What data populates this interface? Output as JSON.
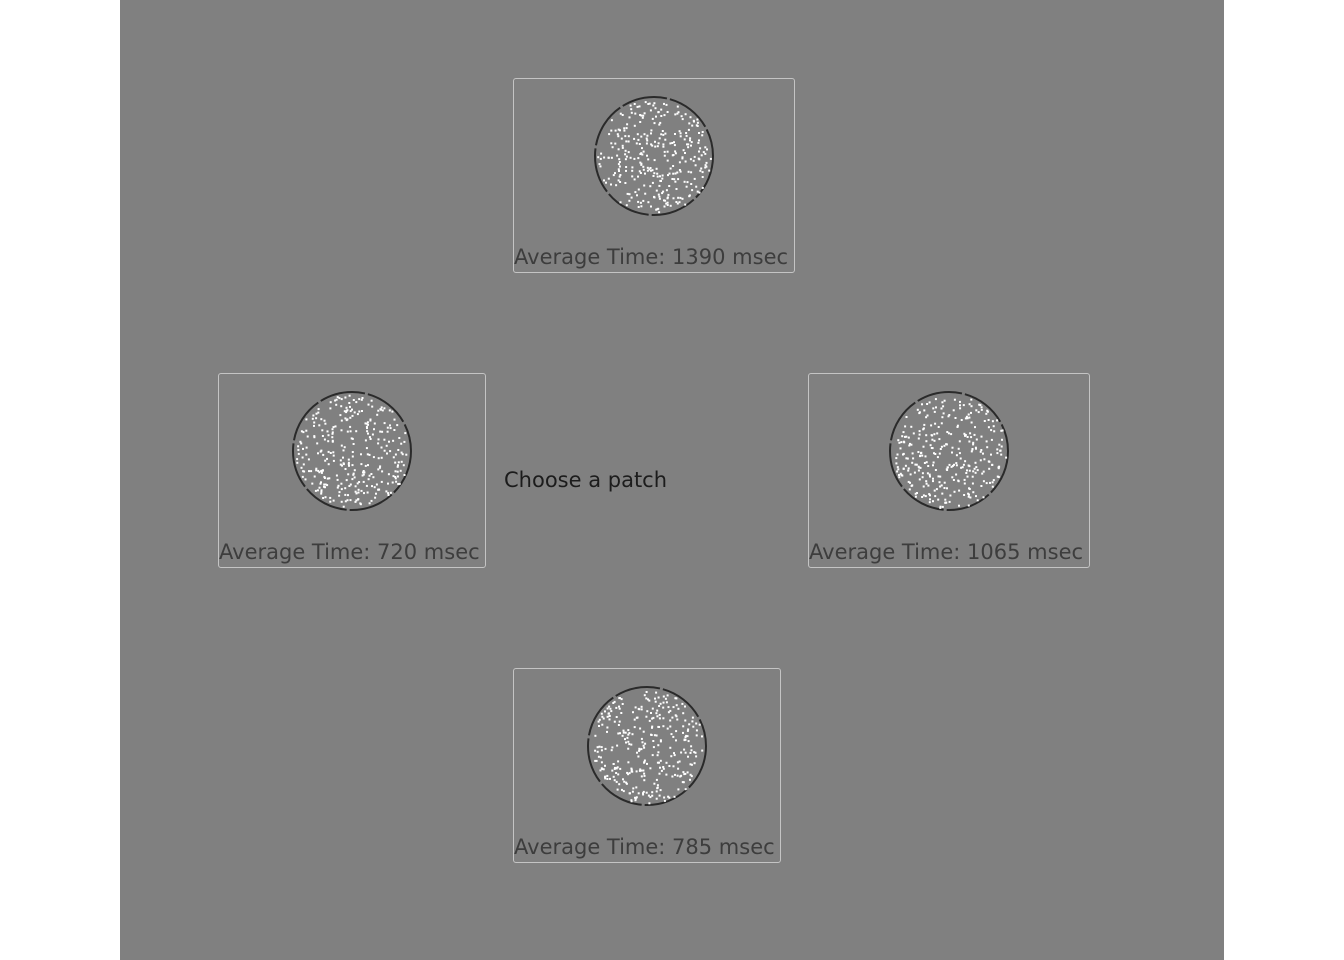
{
  "prompt": "Choose a patch",
  "patches": {
    "top": {
      "label": "Average Time: 1390 msec"
    },
    "left": {
      "label": "Average Time: 720 msec"
    },
    "right": {
      "label": "Average Time: 1065 msec"
    },
    "bottom": {
      "label": "Average Time: 785 msec"
    }
  },
  "colors": {
    "background": "#808080",
    "dot": "#ffffff",
    "circle_outline": "#2a2a2a"
  }
}
